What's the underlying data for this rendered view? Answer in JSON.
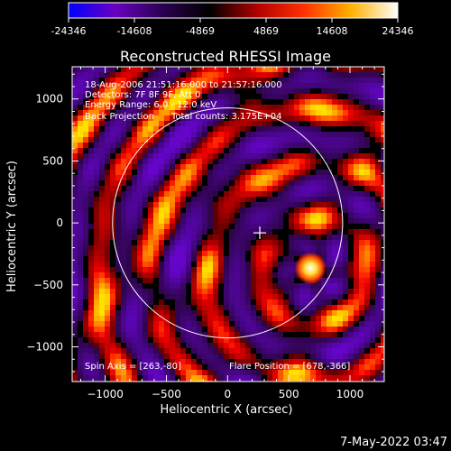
{
  "chart_data": {
    "type": "heatmap",
    "title": "Reconstructed RHESSI Image",
    "xlabel": "Heliocentric X (arcsec)",
    "ylabel": "Heliocentric Y (arcsec)",
    "xlim": [
      -1270,
      1280
    ],
    "ylim": [
      -1280,
      1260
    ],
    "xticks": [
      -1000,
      -500,
      0,
      500,
      1000
    ],
    "yticks": [
      -1000,
      -500,
      0,
      500,
      1000
    ],
    "colorbar": {
      "min": -24346,
      "max": 24346,
      "tick_values": [
        -24346,
        -14608,
        -4869,
        4869,
        14608,
        24346
      ],
      "tick_labels": [
        "-24346",
        "-14608",
        "-4869",
        "4869",
        "14608",
        "24346"
      ],
      "colors": [
        "#0000ff",
        "#6a00c0",
        "#2a0050",
        "#000000",
        "#b00000",
        "#ff3000",
        "#ffb000",
        "#ffffff"
      ]
    },
    "info_lines": [
      "18-Aug-2006 21:51:16.000 to 21:57:16.000",
      "Detectors: 7F 8F 9F, Att 0",
      "Energy Range: 6.0 - 12.0 keV",
      "Back Projection      Total counts: 3.175E+04"
    ],
    "spin_axis_text": "Spin Axis = [263,-80]",
    "flare_position_text": "Flare Position = [678,-366]",
    "spin_axis": [
      263,
      -80
    ],
    "flare_position": [
      678,
      -366
    ],
    "solar_limb_radius_arcsec": 940,
    "grid": false
  },
  "timestamp": "7-May-2022 03:47"
}
